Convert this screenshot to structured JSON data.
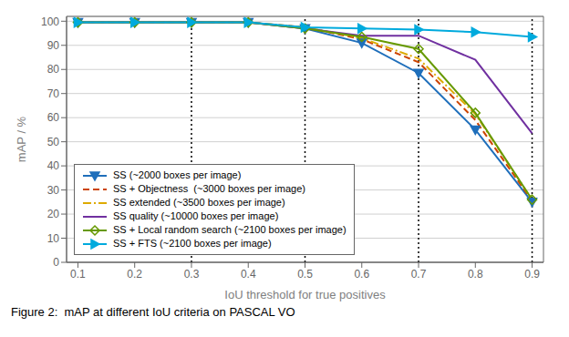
{
  "chart_data": {
    "type": "line",
    "xlabel": "IoU threshold for true positives",
    "ylabel": "mAP / %",
    "x": [
      0.1,
      0.2,
      0.3,
      0.4,
      0.5,
      0.6,
      0.7,
      0.8,
      0.9
    ],
    "series": [
      {
        "name": "SS (~2000 boxes per image)",
        "color": "#1f6fbb",
        "line_style": "solid",
        "marker": "triangle_down",
        "values": [
          99.5,
          99.5,
          99.5,
          99.5,
          97.0,
          91.0,
          78.5,
          55.0,
          25.0
        ]
      },
      {
        "name": "SS + Objectness  (~3000 boxes per image)",
        "color": "#cc4400",
        "line_style": "dashed",
        "marker": "none",
        "values": [
          99.5,
          99.5,
          99.5,
          99.5,
          97.5,
          92.5,
          83.0,
          59.0,
          25.5
        ]
      },
      {
        "name": "SS extended (~3500 boxes per image)",
        "color": "#ddaa00",
        "line_style": "dashdot",
        "marker": "none",
        "values": [
          99.5,
          99.5,
          99.5,
          99.5,
          97.5,
          93.0,
          84.5,
          61.5,
          26.0
        ]
      },
      {
        "name": "SS quality (~10000 boxes per image)",
        "color": "#7030a0",
        "line_style": "solid",
        "marker": "none",
        "values": [
          99.5,
          99.5,
          99.5,
          99.5,
          97.0,
          94.0,
          94.0,
          84.0,
          53.5
        ]
      },
      {
        "name": "SS + Local random search (~2100 boxes per image)",
        "color": "#669900",
        "line_style": "solid",
        "marker": "open_diamond",
        "values": [
          99.5,
          99.5,
          99.5,
          99.5,
          97.0,
          93.5,
          88.5,
          62.0,
          26.0
        ]
      },
      {
        "name": "SS + FTS (~2100 boxes per image)",
        "color": "#00aadd",
        "line_style": "solid",
        "marker": "triangle_right",
        "values": [
          99.5,
          99.5,
          99.5,
          99.5,
          97.5,
          97.0,
          96.5,
          95.5,
          93.5
        ]
      }
    ],
    "xlim": [
      0.08,
      0.92
    ],
    "ylim": [
      0,
      102
    ],
    "xticks": [
      0.1,
      0.2,
      0.3,
      0.4,
      0.5,
      0.6,
      0.7,
      0.8,
      0.9
    ],
    "yticks": [
      0,
      10,
      20,
      30,
      40,
      50,
      60,
      70,
      80,
      90,
      100
    ],
    "vlines": [
      0.3,
      0.5,
      0.7,
      0.9
    ],
    "grid": true,
    "legend": "lower left",
    "annotations": [
      "Figure 2:  mAP at different IoU criteria on PASCAL VO"
    ]
  }
}
